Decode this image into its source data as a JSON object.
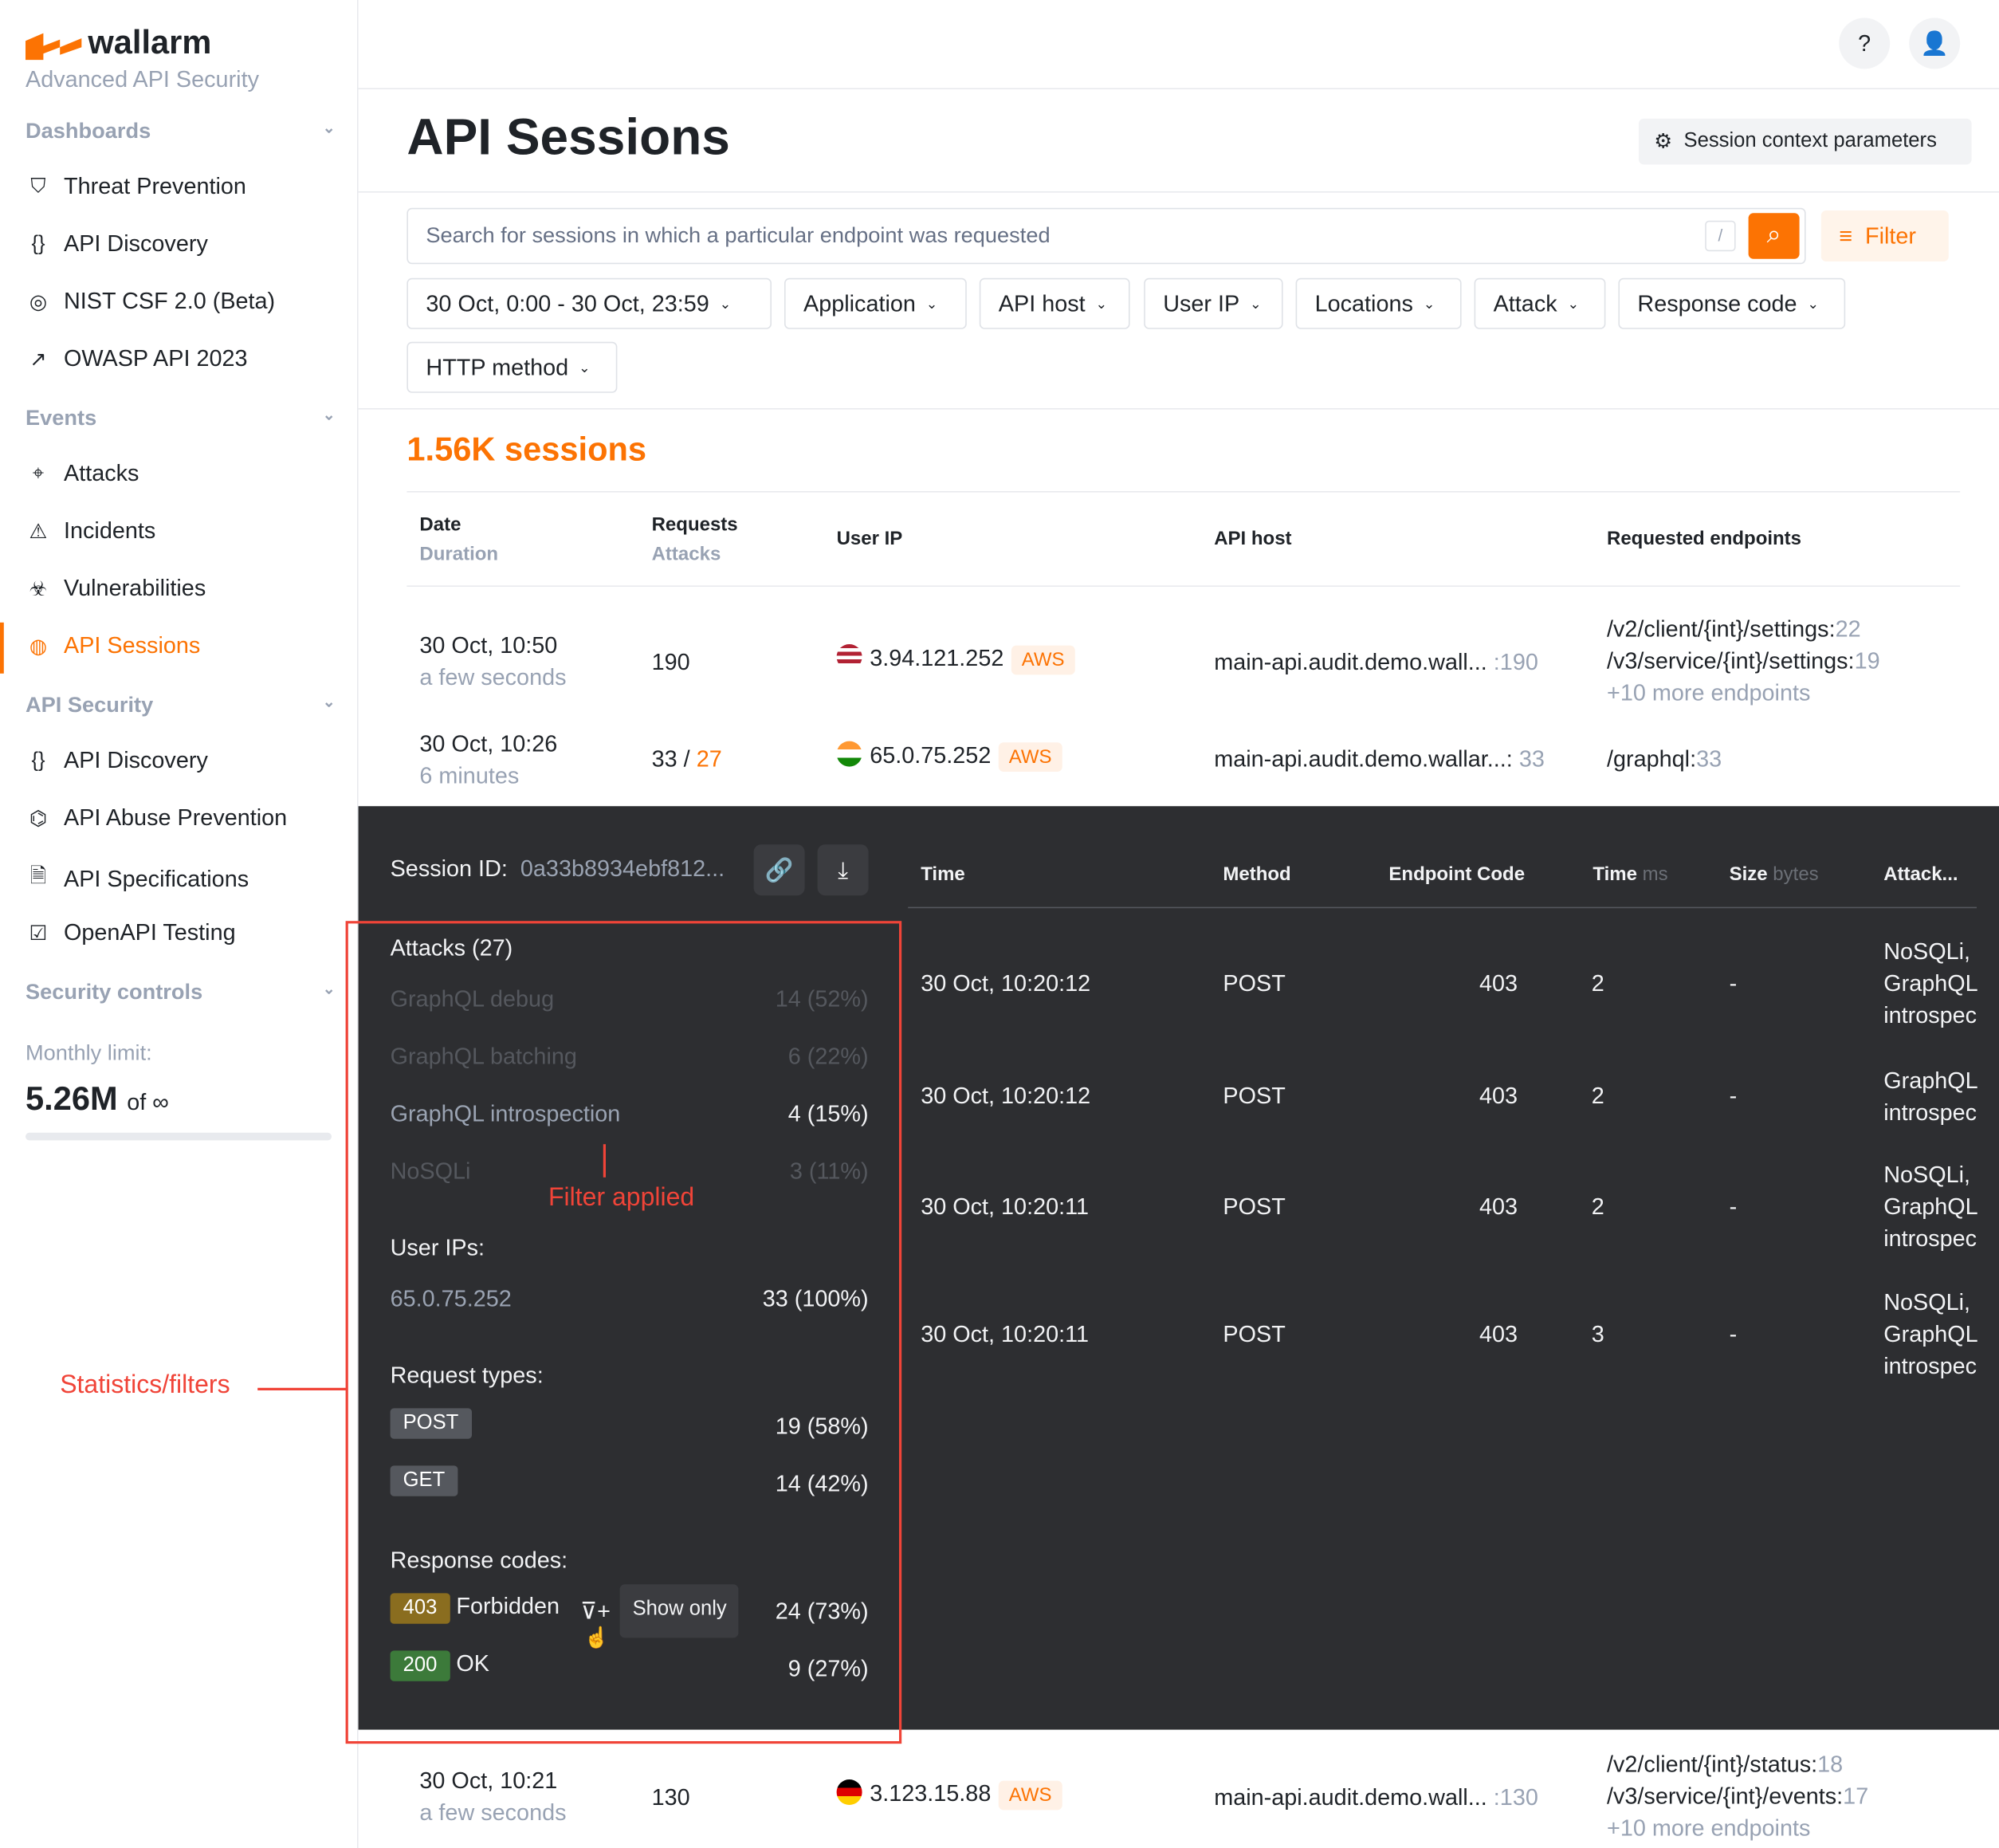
{
  "brand": {
    "name": "wallarm",
    "subtitle": "Advanced API Security",
    "accent": "#fc7303"
  },
  "sidebar": {
    "sections": [
      {
        "label": "Dashboards",
        "items": [
          {
            "label": "Threat Prevention",
            "icon": "shield-bolt-icon"
          },
          {
            "label": "API Discovery",
            "icon": "braces-icon"
          },
          {
            "label": "NIST CSF 2.0 (Beta)",
            "icon": "globe-icon"
          },
          {
            "label": "OWASP API 2023",
            "icon": "arrow-icon"
          }
        ]
      },
      {
        "label": "Events",
        "items": [
          {
            "label": "Attacks",
            "icon": "target-icon"
          },
          {
            "label": "Incidents",
            "icon": "warning-icon"
          },
          {
            "label": "Vulnerabilities",
            "icon": "biohazard-icon"
          },
          {
            "label": "API Sessions",
            "icon": "fingerprint-icon",
            "active": true
          }
        ]
      },
      {
        "label": "API Security",
        "items": [
          {
            "label": "API Discovery",
            "icon": "braces-icon"
          },
          {
            "label": "API Abuse Prevention",
            "icon": "bot-icon"
          },
          {
            "label": "API Specifications",
            "icon": "document-icon"
          },
          {
            "label": "OpenAPI Testing",
            "icon": "checklist-icon"
          }
        ]
      },
      {
        "label": "Security controls",
        "items": []
      }
    ],
    "monthly_limit_label": "Monthly limit:",
    "monthly_limit_value": "5.26M",
    "monthly_limit_of": "of ∞"
  },
  "header": {
    "title": "API Sessions",
    "context_button": "Session context parameters"
  },
  "search": {
    "placeholder": "Search for sessions in which a particular endpoint was requested",
    "shortcut": "/",
    "filter_label": "Filter"
  },
  "filters": [
    "30 Oct, 0:00 - 30 Oct, 23:59",
    "Application",
    "API host",
    "User IP",
    "Locations",
    "Attack",
    "Response code",
    "HTTP method"
  ],
  "sessions_count": "1.56K sessions",
  "table": {
    "headers": {
      "date": "Date",
      "duration": "Duration",
      "requests": "Requests",
      "attacks": "Attacks",
      "user_ip": "User IP",
      "api_host": "API host",
      "endpoints": "Requested endpoints"
    },
    "rows": [
      {
        "date": "30 Oct, 10:50",
        "duration": "a few seconds",
        "requests": "190",
        "attacks": "",
        "ip": "3.94.121.252",
        "provider": "AWS",
        "flag": "us",
        "host": "main-api.audit.demo.wall...",
        "host_count": ":190",
        "endpoints": [
          [
            "/v2/client/{int}/settings:",
            "22"
          ],
          [
            "/v3/service/{int}/settings:",
            "19"
          ]
        ],
        "more": "+10 more endpoints"
      },
      {
        "date": "30 Oct, 10:26",
        "duration": "6 minutes",
        "requests": "33",
        "sep": "/",
        "attacks": "27",
        "ip": "65.0.75.252",
        "provider": "AWS",
        "flag": "in",
        "host": "main-api.audit.demo.wallar...:",
        "host_count": "33",
        "endpoints": [
          [
            "/graphql:",
            "33"
          ]
        ],
        "more": ""
      },
      {
        "date": "30 Oct, 10:21",
        "duration": "a few seconds",
        "requests": "130",
        "attacks": "",
        "ip": "3.123.15.88",
        "provider": "AWS",
        "flag": "de",
        "host": "main-api.audit.demo.wall...",
        "host_count": ":130",
        "endpoints": [
          [
            "/v2/client/{int}/status:",
            "18"
          ],
          [
            "/v3/service/{int}/events:",
            "17"
          ]
        ],
        "more": "+10 more endpoints"
      }
    ]
  },
  "session_detail": {
    "session_id_label": "Session ID:",
    "session_id": "0a33b8934ebf812...",
    "attacks_title": "Attacks (27)",
    "attacks": [
      {
        "name": "GraphQL debug",
        "value": "14 (52%)",
        "active": false
      },
      {
        "name": "GraphQL batching",
        "value": "6 (22%)",
        "active": false
      },
      {
        "name": "GraphQL introspection",
        "value": "4 (15%)",
        "active": true
      },
      {
        "name": "NoSQLi",
        "value": "3 (11%)",
        "active": false
      }
    ],
    "user_ips_title": "User IPs:",
    "user_ips": [
      {
        "ip": "65.0.75.252",
        "value": "33 (100%)"
      }
    ],
    "request_types_title": "Request types:",
    "request_types": [
      {
        "method": "POST",
        "value": "19 (58%)"
      },
      {
        "method": "GET",
        "value": "14 (42%)"
      }
    ],
    "response_codes_title": "Response codes:",
    "response_codes": [
      {
        "code": "403",
        "label": "Forbidden",
        "value": "24 (73%)",
        "color": "#8a6d1f"
      },
      {
        "code": "200",
        "label": "OK",
        "value": "9 (27%)",
        "color": "#3c7a3a"
      }
    ],
    "show_only": "Show only",
    "requests_headers": {
      "time": "Time",
      "method": "Method",
      "endpoint": "Endpoint",
      "code": "Code",
      "time_ms": "Time",
      "ms": "ms",
      "size": "Size",
      "bytes": "bytes",
      "attack": "Attack..."
    },
    "requests": [
      {
        "time": "30 Oct, 10:20:12",
        "method": "POST",
        "code": "403",
        "ms": "2",
        "size": "-",
        "attack": [
          "NoSQLi,",
          "GraphQL",
          "introspec"
        ]
      },
      {
        "time": "30 Oct, 10:20:12",
        "method": "POST",
        "code": "403",
        "ms": "2",
        "size": "-",
        "attack": [
          "GraphQL",
          "introspec"
        ]
      },
      {
        "time": "30 Oct, 10:20:11",
        "method": "POST",
        "code": "403",
        "ms": "2",
        "size": "-",
        "attack": [
          "NoSQLi,",
          "GraphQL",
          "introspec"
        ]
      },
      {
        "time": "30 Oct, 10:20:11",
        "method": "POST",
        "code": "403",
        "ms": "3",
        "size": "-",
        "attack": [
          "NoSQLi,",
          "GraphQL",
          "introspec"
        ]
      }
    ]
  },
  "annotations": {
    "filter_applied": "Filter applied",
    "statistics": "Statistics/filters",
    "color": "#f04438"
  }
}
